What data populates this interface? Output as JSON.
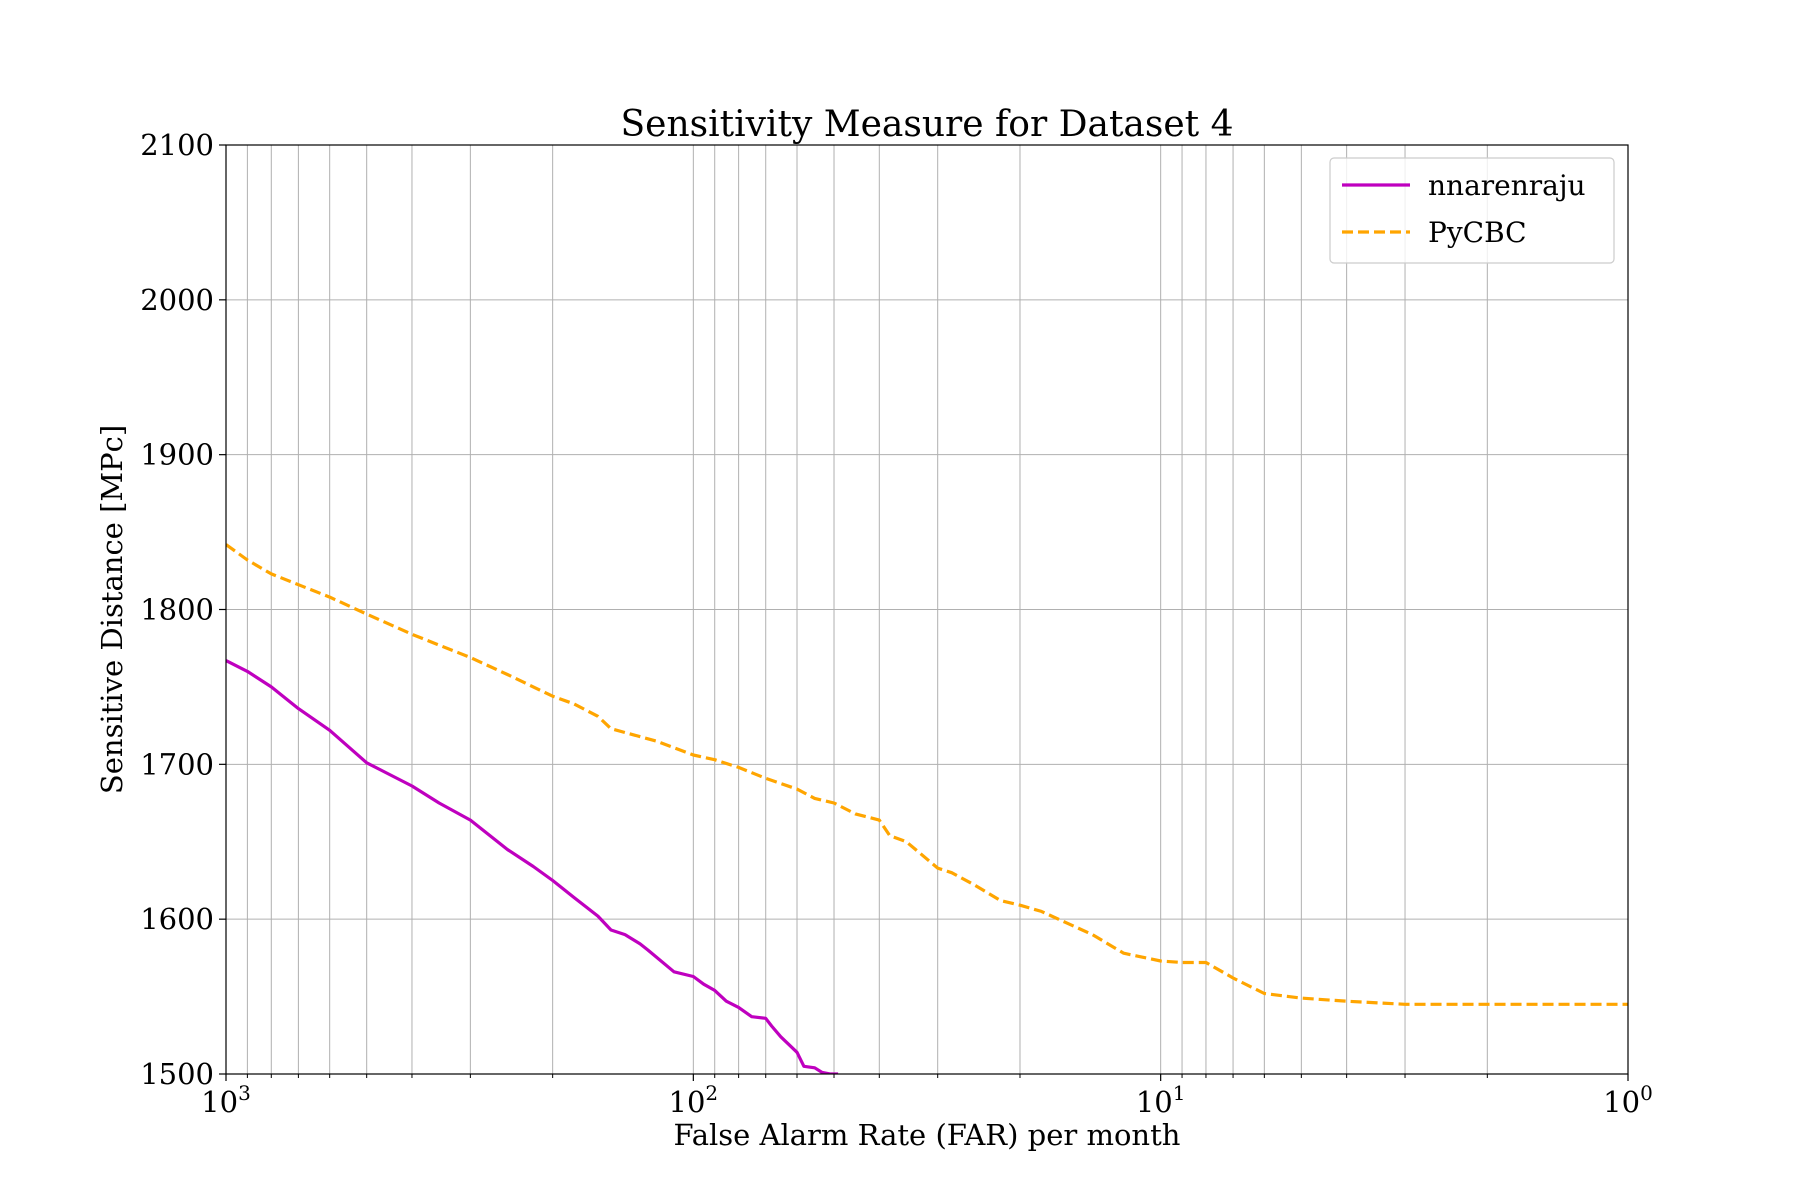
{
  "chart_data": {
    "type": "line",
    "title": "Sensitivity Measure for Dataset 4",
    "xlabel": "False Alarm Rate (FAR) per month",
    "ylabel": "Sensitive Distance [MPc]",
    "x_scale": "log",
    "x_reversed": true,
    "xlim": [
      1000,
      1
    ],
    "ylim": [
      1500,
      2100
    ],
    "yticks": [
      1500,
      1600,
      1700,
      1800,
      1900,
      2000,
      2100
    ],
    "yticklabels": [
      "1500",
      "1600",
      "1700",
      "1800",
      "1900",
      "2000",
      "2100"
    ],
    "xticks": [
      1000,
      100,
      10,
      1
    ],
    "xticklabels": [
      {
        "base": "10",
        "exp": "3"
      },
      {
        "base": "10",
        "exp": "2"
      },
      {
        "base": "10",
        "exp": "1"
      },
      {
        "base": "10",
        "exp": "0"
      }
    ],
    "grid": true,
    "legend": "top-right",
    "series": [
      {
        "name": "nnarenraju",
        "color": "#bf00bf",
        "style": "solid",
        "x": [
          1000,
          900,
          800,
          700,
          600,
          500,
          400,
          350,
          300,
          250,
          220,
          200,
          180,
          160,
          150,
          140,
          130,
          125,
          110,
          100,
          95,
          90,
          85,
          80,
          75,
          70,
          68,
          65,
          60,
          58,
          55,
          53,
          51,
          50.5,
          49
        ],
        "y": [
          1767,
          1760,
          1750,
          1736,
          1722,
          1701,
          1686,
          1675,
          1664,
          1645,
          1634,
          1625,
          1614,
          1602,
          1593,
          1590,
          1584,
          1580,
          1566,
          1563,
          1558,
          1554,
          1547,
          1543,
          1537,
          1536,
          1531,
          1524,
          1514,
          1505,
          1504,
          1501,
          1500,
          1500,
          1500
        ]
      },
      {
        "name": "PyCBC",
        "color": "#ffa500",
        "style": "dashed",
        "x": [
          1000,
          900,
          800,
          700,
          600,
          500,
          400,
          350,
          300,
          250,
          200,
          180,
          160,
          150,
          120,
          100,
          90,
          80,
          70,
          60,
          55,
          50,
          45,
          40,
          38,
          35,
          30,
          28,
          25,
          22,
          20,
          18,
          16,
          14,
          12,
          10,
          9,
          8,
          7,
          6,
          5,
          4,
          3,
          2,
          1
        ],
        "y": [
          1842,
          1832,
          1823,
          1816,
          1808,
          1797,
          1784,
          1777,
          1769,
          1758,
          1744,
          1739,
          1731,
          1723,
          1715,
          1706,
          1703,
          1698,
          1691,
          1684,
          1678,
          1675,
          1668,
          1664,
          1654,
          1650,
          1633,
          1630,
          1622,
          1612,
          1609,
          1605,
          1598,
          1590,
          1578,
          1573,
          1572,
          1572,
          1562,
          1552,
          1549,
          1547,
          1545,
          1545,
          1545
        ]
      }
    ]
  }
}
